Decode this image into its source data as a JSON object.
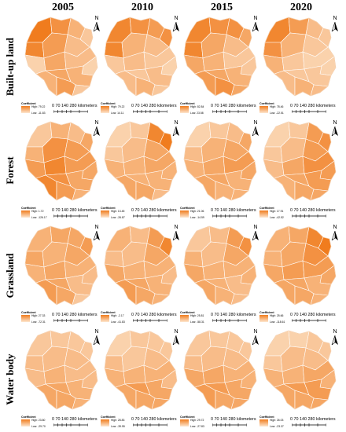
{
  "years": [
    "2005",
    "2010",
    "2015",
    "2020"
  ],
  "rows": [
    {
      "label": "Built-up land",
      "legends": [
        {
          "title": "Coefficient",
          "high": "High: 79.22",
          "low": "Low: -11.83"
        },
        {
          "title": "Coefficient",
          "high": "High: 79.22",
          "low": "Low: 14.11"
        },
        {
          "title": "Coefficient",
          "high": "High: 82.84",
          "low": "Low: 23.58"
        },
        {
          "title": "Coefficient",
          "high": "High: 78.46",
          "low": "Low: -22.51"
        }
      ]
    },
    {
      "label": "Forest",
      "legends": [
        {
          "title": "Coefficient",
          "high": "High: 1.72",
          "low": "Low: -126.17"
        },
        {
          "title": "Coefficient",
          "high": "High: 13.45",
          "low": "Low: -26.87"
        },
        {
          "title": "Coefficient",
          "high": "High: 21.06",
          "low": "Low: -14.59"
        },
        {
          "title": "Coefficient",
          "high": "High: 17.91",
          "low": "Low: -42.52"
        }
      ]
    },
    {
      "label": "Grassland",
      "legends": [
        {
          "title": "Coefficient",
          "high": "High: 27.33",
          "low": "Low: -72.31"
        },
        {
          "title": "Coefficient",
          "high": "High: -2.17",
          "low": "Low: -41.83"
        },
        {
          "title": "Coefficient",
          "high": "High: 25.81",
          "low": "Low: -58.31"
        },
        {
          "title": "Coefficient",
          "high": "High: 25.66",
          "low": "Low: -118.61"
        }
      ]
    },
    {
      "label": "Water body",
      "legends": [
        {
          "title": "Coefficient",
          "high": "High: 23.80",
          "low": "Low: -29.70"
        },
        {
          "title": "Coefficient",
          "high": "High: 28.83",
          "low": "Low: -39.55"
        },
        {
          "title": "Coefficient",
          "high": "High: 29.72",
          "low": "Low: -27.83"
        },
        {
          "title": "Coefficient",
          "high": "High: 26.03",
          "low": "Low: -23.37"
        }
      ]
    }
  ],
  "scale_bar": {
    "numbers": "0   70 140     280",
    "unit": "kilometers"
  },
  "north_label": "N",
  "colors": {
    "high": "#f07c1e",
    "mid": "#f6b57a",
    "low": "#fde7d0",
    "boundary": "#ffffff"
  }
}
